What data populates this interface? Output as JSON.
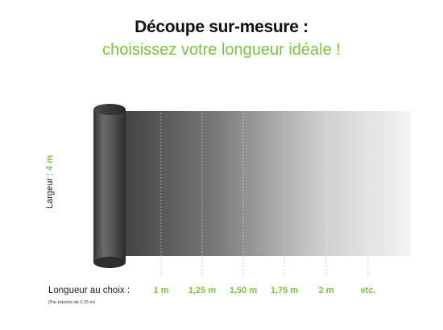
{
  "header": {
    "title": "Découpe sur-mesure :",
    "subtitle": "choisissez votre longueur idéale !"
  },
  "width_label": {
    "text": "Largeur : ",
    "value": "4 m"
  },
  "length": {
    "label": "Longueur au choix :",
    "note": "(Par tranche de 0,25 m)",
    "options": [
      "1 m",
      "1,25 m",
      "1,50 m",
      "1,75 m",
      "2 m",
      "etc."
    ]
  },
  "colors": {
    "accent": "#7cc242",
    "roll_dark": "#3a3a3a",
    "sheet_light": "#f2f2f2"
  }
}
